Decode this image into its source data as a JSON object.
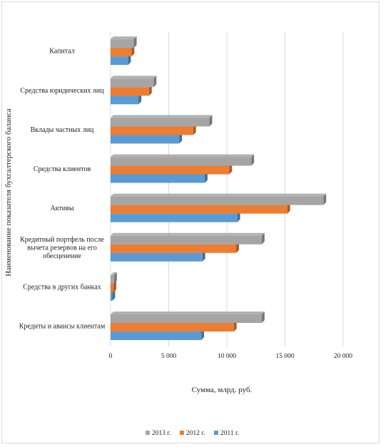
{
  "chart_data": {
    "type": "bar",
    "orientation": "horizontal",
    "categories": [
      "Кредиты и авансы клиентам",
      "Средства в других банках",
      "Кредитный портфель после вычета резервов на его обесценение",
      "Активы",
      "Средства клиентов",
      "Вклады частных лиц",
      "Средства юридических лиц",
      "Капитал"
    ],
    "series": [
      {
        "name": "2011 г.",
        "color": "#5b9bd5",
        "values": [
          7800,
          150,
          7900,
          10900,
          8100,
          5900,
          2400,
          1500
        ]
      },
      {
        "name": "2012 г.",
        "color": "#ed7d31",
        "values": [
          10600,
          250,
          10800,
          15200,
          10200,
          7100,
          3300,
          1800
        ]
      },
      {
        "name": "2013 г.",
        "color": "#a5a5a5",
        "values": [
          13000,
          300,
          13000,
          18300,
          12100,
          8500,
          3700,
          2000
        ]
      }
    ],
    "xlabel": "Сумма, млрд. руб.",
    "ylabel": "Наименование показателя бухгалтерского баланса",
    "xlim": [
      0,
      20000
    ],
    "xticks": [
      0,
      5000,
      10000,
      15000,
      20000
    ],
    "xtick_labels": [
      "0",
      "5 000",
      "10 000",
      "15 000",
      "20 000"
    ],
    "grid": true,
    "legend_position": "bottom",
    "legend_order": [
      "2013 г.",
      "2012 г.",
      "2011 г."
    ]
  }
}
